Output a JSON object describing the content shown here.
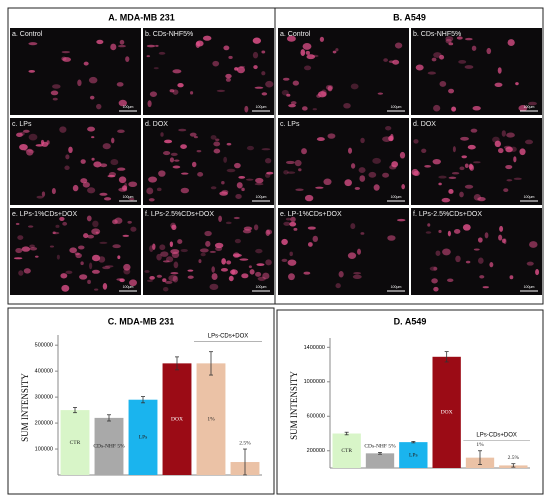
{
  "image_panels": [
    {
      "title": "A. MDA-MB 231",
      "images": [
        "a. Control",
        "b. CDs-NHF5%",
        "c. LPs",
        "d. DOX",
        "e. LPs-1%CDs+DOX",
        "f. LPs-2.5%CDs+DOX"
      ]
    },
    {
      "title": "B. A549",
      "images": [
        "a. Control",
        "b. CDs-NHF5%",
        "c. LPs",
        "d. DOX",
        "e. LP-1%CDs+DOX",
        "f. LPs-2.5%CDs+DOX"
      ]
    }
  ],
  "scale_bar": "100μm",
  "chart_data": [
    {
      "type": "bar",
      "title": "C. MDA-MB 231",
      "ylabel": "SUM INTENSITY",
      "categories": [
        "CTR",
        "CDs-NHF 5%",
        "LPs",
        "DOX",
        "1%",
        "2.5%"
      ],
      "values": [
        250000,
        220000,
        290000,
        430000,
        430000,
        50000
      ],
      "errors": [
        10000,
        12000,
        12000,
        25000,
        45000,
        50000
      ],
      "colors": [
        "#d8f5c8",
        "#a9a9a9",
        "#1ab4ee",
        "#9b0b15",
        "#ebc2a6",
        "#ebc2a6"
      ],
      "annotation": "LPs-CDs+DOX",
      "ylim": [
        0,
        520000
      ],
      "yticks": [
        100000,
        200000,
        300000,
        400000,
        500000
      ]
    },
    {
      "type": "bar",
      "title": "D. A549",
      "ylabel": "SUM INTENSITY",
      "categories": [
        "CTR",
        "CDs-NHF 5%",
        "LPs",
        "DOX",
        "1%",
        "2.5%"
      ],
      "values": [
        400000,
        170000,
        300000,
        1290000,
        120000,
        30000
      ],
      "errors": [
        15000,
        10000,
        8000,
        60000,
        80000,
        20000
      ],
      "colors": [
        "#d8f5c8",
        "#a9a9a9",
        "#1ab4ee",
        "#9b0b15",
        "#ebc2a6",
        "#ebc2a6"
      ],
      "annotation": "LPs-CDs+DOX",
      "ylim": [
        0,
        1450000
      ],
      "yticks": [
        200000,
        600000,
        1000000,
        1400000
      ]
    }
  ]
}
